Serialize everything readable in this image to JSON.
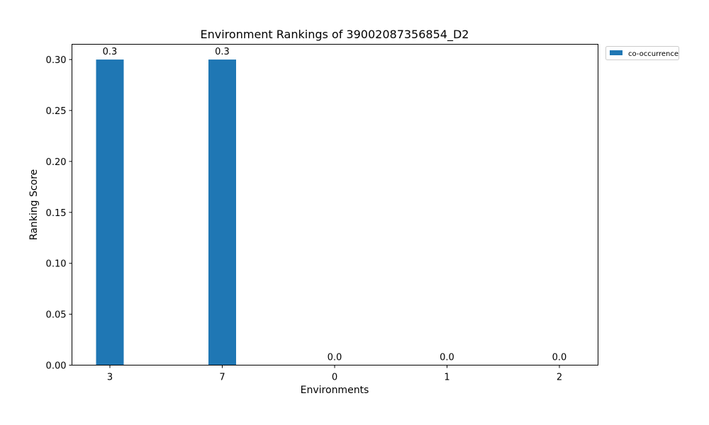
{
  "chart_data": {
    "type": "bar",
    "title": "Environment Rankings of 39002087356854_D2",
    "xlabel": "Environments",
    "ylabel": "Ranking Score",
    "categories": [
      "3",
      "7",
      "0",
      "1",
      "2"
    ],
    "series": [
      {
        "name": "co-occurrence",
        "values": [
          0.3,
          0.3,
          0.0,
          0.0,
          0.0
        ],
        "color": "#1f77b4"
      }
    ],
    "data_labels": [
      "0.3",
      "0.3",
      "0.0",
      "0.0",
      "0.0"
    ],
    "ylim": [
      0,
      0.315
    ],
    "yticks": [
      0.0,
      0.05,
      0.1,
      0.15,
      0.2,
      0.25,
      0.3
    ],
    "ytick_labels": [
      "0.00",
      "0.05",
      "0.10",
      "0.15",
      "0.20",
      "0.25",
      "0.30"
    ],
    "grid": false,
    "legend_position": "outside top-right"
  }
}
